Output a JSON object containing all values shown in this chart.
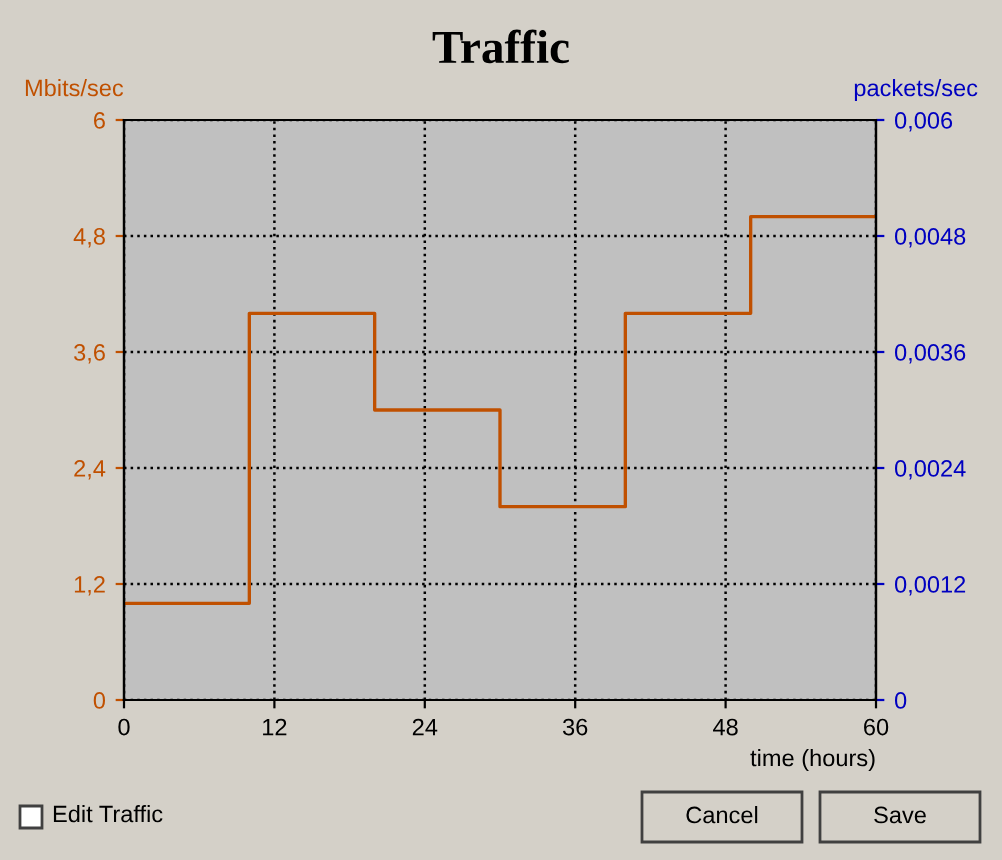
{
  "chart_data": {
    "type": "step",
    "title": "Traffic",
    "xlabel": "time (hours)",
    "ylabel": "Mbits/sec",
    "y2label": "packets/sec",
    "x": [
      0,
      10,
      20,
      30,
      40,
      50,
      60
    ],
    "series": [
      {
        "color": "#c05000",
        "values": [
          1,
          4,
          3,
          2,
          4,
          5,
          5
        ]
      }
    ],
    "xlim": [
      0,
      60
    ],
    "xticks": [
      0,
      12,
      24,
      36,
      48,
      60
    ],
    "ylim": [
      0,
      6
    ],
    "yticks": [
      0,
      {
        "value": 1.2,
        "label": "1,2"
      },
      {
        "value": 2.4,
        "label": "2,4"
      },
      {
        "value": 3.6,
        "label": "3,6"
      },
      {
        "value": 4.8,
        "label": "4,8"
      },
      6
    ],
    "y2lim": [
      0,
      0.006
    ],
    "y2ticks": [
      0,
      {
        "value": 0.0012,
        "label": "0,0012"
      },
      {
        "value": 0.0024,
        "label": "0,0024"
      },
      {
        "value": 0.0036,
        "label": "0,0036"
      },
      {
        "value": 0.0048,
        "label": "0,0048"
      },
      {
        "value": 0.006,
        "label": "0,006"
      }
    ],
    "grid": true,
    "annotations": [
      "Edit Traffic",
      "Cancel",
      "Save"
    ]
  }
}
